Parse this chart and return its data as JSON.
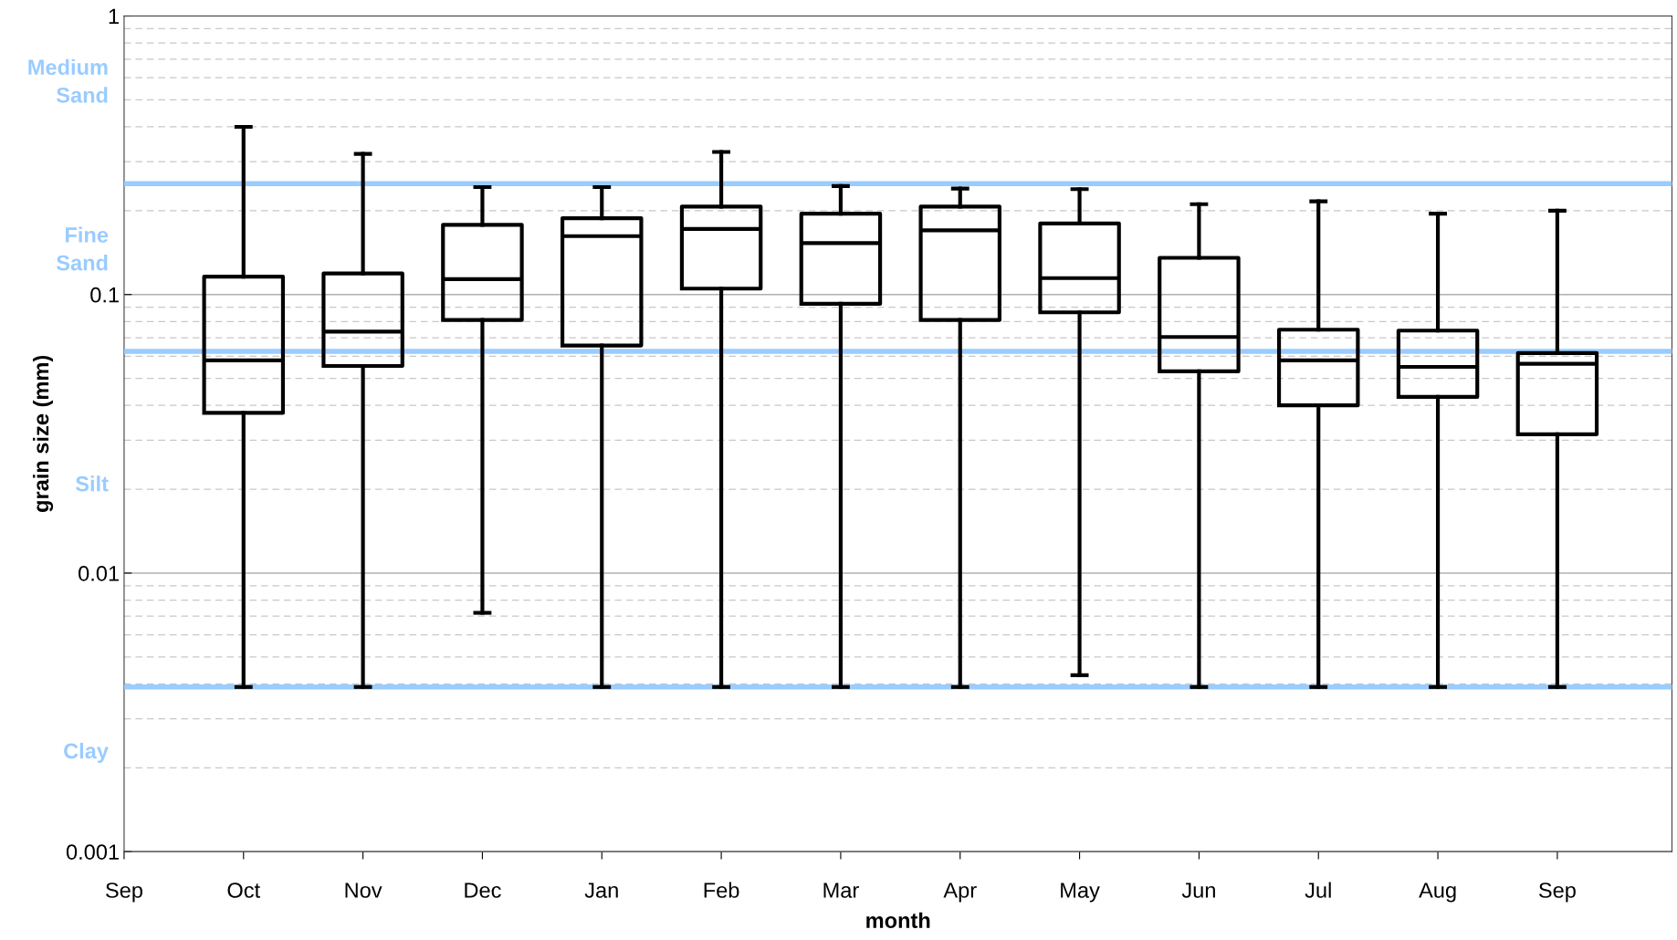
{
  "chart_data": {
    "type": "box",
    "xlabel": "month",
    "ylabel": "grain size (mm)",
    "categories": [
      "Sep",
      "Oct",
      "Nov",
      "Dec",
      "Jan",
      "Feb",
      "Mar",
      "Apr",
      "May",
      "Jun",
      "Jul",
      "Aug",
      "Sep"
    ],
    "boxes": [
      null,
      {
        "low": 0.0039,
        "q1": 0.0376,
        "median": 0.058,
        "q3": 0.116,
        "high": 0.4
      },
      {
        "low": 0.0039,
        "q1": 0.0554,
        "median": 0.0736,
        "q3": 0.119,
        "high": 0.32
      },
      {
        "low": 0.0072,
        "q1": 0.081,
        "median": 0.1135,
        "q3": 0.178,
        "high": 0.243
      },
      {
        "low": 0.0039,
        "q1": 0.0656,
        "median": 0.162,
        "q3": 0.188,
        "high": 0.243
      },
      {
        "low": 0.0039,
        "q1": 0.105,
        "median": 0.172,
        "q3": 0.207,
        "high": 0.325
      },
      {
        "low": 0.0039,
        "q1": 0.0926,
        "median": 0.153,
        "q3": 0.195,
        "high": 0.245
      },
      {
        "low": 0.0039,
        "q1": 0.081,
        "median": 0.17,
        "q3": 0.207,
        "high": 0.24
      },
      {
        "low": 0.0043,
        "q1": 0.0863,
        "median": 0.1145,
        "q3": 0.18,
        "high": 0.239
      },
      {
        "low": 0.0039,
        "q1": 0.053,
        "median": 0.0704,
        "q3": 0.1355,
        "high": 0.211
      },
      {
        "low": 0.0039,
        "q1": 0.04,
        "median": 0.058,
        "q3": 0.0748,
        "high": 0.216
      },
      {
        "low": 0.0039,
        "q1": 0.0429,
        "median": 0.055,
        "q3": 0.0742,
        "high": 0.195
      },
      {
        "low": 0.0039,
        "q1": 0.0315,
        "median": 0.0564,
        "q3": 0.0616,
        "high": 0.2
      }
    ],
    "color": "#000000",
    "log": "y",
    "ylim": [
      0.001,
      1
    ],
    "yticks": [
      0.001,
      0.01,
      0.1,
      1
    ],
    "grid": true,
    "ref_lines": [
      {
        "axis": "y",
        "value": 0.25,
        "color": "#99ccff"
      },
      {
        "axis": "y",
        "value": 0.0625,
        "color": "#99ccff"
      },
      {
        "axis": "y",
        "value": 0.0039,
        "color": "#99ccff"
      }
    ],
    "annotations": [
      "Medium\nSand",
      "Fine\nSand",
      "Silt",
      "Clay"
    ]
  }
}
